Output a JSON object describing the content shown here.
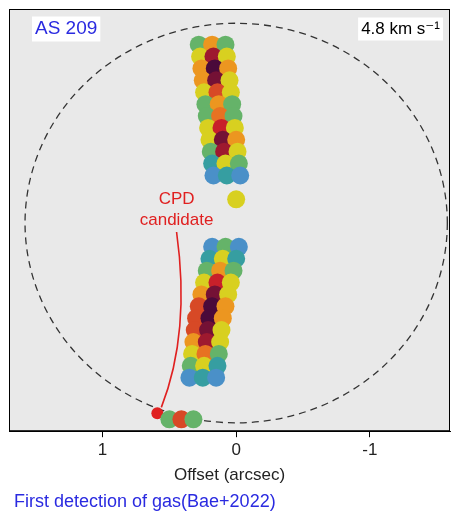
{
  "chart_data": {
    "type": "scatter",
    "x_label": "Offset (arcsec)",
    "xlim": [
      1.7,
      -1.6
    ],
    "xticks": [
      1,
      0,
      -1
    ],
    "ylim": [
      -1.95,
      1.6
    ],
    "tick_labels": "x",
    "grid": false,
    "emission": {
      "points": [
        [
          0.28,
          1.3,
          0.5
        ],
        [
          0.18,
          1.3,
          0.7
        ],
        [
          0.08,
          1.3,
          0.5
        ],
        [
          0.27,
          1.2,
          0.6
        ],
        [
          0.17,
          1.2,
          0.9
        ],
        [
          0.07,
          1.2,
          0.6
        ],
        [
          0.26,
          1.1,
          0.7
        ],
        [
          0.16,
          1.1,
          1.0
        ],
        [
          0.06,
          1.1,
          0.7
        ],
        [
          0.25,
          1.0,
          0.7
        ],
        [
          0.15,
          1.0,
          0.95
        ],
        [
          0.05,
          1.0,
          0.6
        ],
        [
          0.24,
          0.9,
          0.6
        ],
        [
          0.14,
          0.9,
          0.8
        ],
        [
          0.04,
          0.9,
          0.6
        ],
        [
          0.23,
          0.8,
          0.5
        ],
        [
          0.13,
          0.8,
          0.7
        ],
        [
          0.03,
          0.8,
          0.5
        ],
        [
          0.22,
          0.7,
          0.5
        ],
        [
          0.12,
          0.7,
          0.75
        ],
        [
          0.02,
          0.7,
          0.5
        ],
        [
          0.21,
          0.6,
          0.6
        ],
        [
          0.11,
          0.6,
          0.85
        ],
        [
          0.01,
          0.6,
          0.6
        ],
        [
          0.2,
          0.5,
          0.6
        ],
        [
          0.1,
          0.5,
          0.95
        ],
        [
          0,
          0.5,
          0.7
        ],
        [
          0.19,
          0.4,
          0.5
        ],
        [
          0.09,
          0.4,
          0.9
        ],
        [
          -0.01,
          0.4,
          0.6
        ],
        [
          0.18,
          0.3,
          0.4
        ],
        [
          0.08,
          0.3,
          0.6
        ],
        [
          -0.02,
          0.3,
          0.5
        ],
        [
          0.17,
          0.2,
          0.3
        ],
        [
          0.07,
          0.2,
          0.4
        ],
        [
          -0.03,
          0.2,
          0.3
        ],
        [
          0,
          0,
          0.6
        ],
        [
          0.18,
          -0.4,
          0.3
        ],
        [
          0.08,
          -0.4,
          0.5
        ],
        [
          -0.02,
          -0.4,
          0.3
        ],
        [
          0.2,
          -0.5,
          0.4
        ],
        [
          0.1,
          -0.5,
          0.6
        ],
        [
          0,
          -0.5,
          0.4
        ],
        [
          0.22,
          -0.6,
          0.5
        ],
        [
          0.12,
          -0.6,
          0.7
        ],
        [
          0.02,
          -0.6,
          0.5
        ],
        [
          0.24,
          -0.7,
          0.6
        ],
        [
          0.14,
          -0.7,
          0.85
        ],
        [
          0.04,
          -0.7,
          0.6
        ],
        [
          0.26,
          -0.8,
          0.7
        ],
        [
          0.16,
          -0.8,
          0.95
        ],
        [
          0.06,
          -0.8,
          0.6
        ],
        [
          0.28,
          -0.9,
          0.8
        ],
        [
          0.18,
          -0.9,
          1.0
        ],
        [
          0.08,
          -0.9,
          0.7
        ],
        [
          0.3,
          -1.0,
          0.8
        ],
        [
          0.2,
          -1.0,
          1.0
        ],
        [
          0.1,
          -1.0,
          0.7
        ],
        [
          0.31,
          -1.1,
          0.8
        ],
        [
          0.21,
          -1.1,
          0.95
        ],
        [
          0.11,
          -1.1,
          0.6
        ],
        [
          0.32,
          -1.2,
          0.7
        ],
        [
          0.22,
          -1.2,
          0.9
        ],
        [
          0.12,
          -1.2,
          0.6
        ],
        [
          0.33,
          -1.3,
          0.6
        ],
        [
          0.23,
          -1.3,
          0.75
        ],
        [
          0.13,
          -1.3,
          0.5
        ],
        [
          0.34,
          -1.4,
          0.5
        ],
        [
          0.24,
          -1.4,
          0.6
        ],
        [
          0.14,
          -1.4,
          0.4
        ],
        [
          0.35,
          -1.5,
          0.3
        ],
        [
          0.25,
          -1.5,
          0.4
        ],
        [
          0.15,
          -1.5,
          0.3
        ],
        [
          0.5,
          -1.85,
          0.5
        ],
        [
          0.41,
          -1.85,
          0.8
        ],
        [
          0.32,
          -1.85,
          0.5
        ]
      ]
    },
    "ring": {
      "center": [
        0,
        -0.2
      ],
      "radii": [
        1.58,
        1.68
      ],
      "line_style": "dashed"
    },
    "annotations": [
      {
        "text": "AS 209",
        "color": "#2a2ae0"
      },
      {
        "text": "4.8 km s⁻¹",
        "color": "#000000"
      },
      {
        "text": "CPD candidate",
        "color": "#e02020",
        "arrow_to": [
          0.59,
          -1.8
        ]
      },
      {
        "text": "First detection of gas(Bae+2022)",
        "color": "#2a2ae0"
      }
    ]
  }
}
